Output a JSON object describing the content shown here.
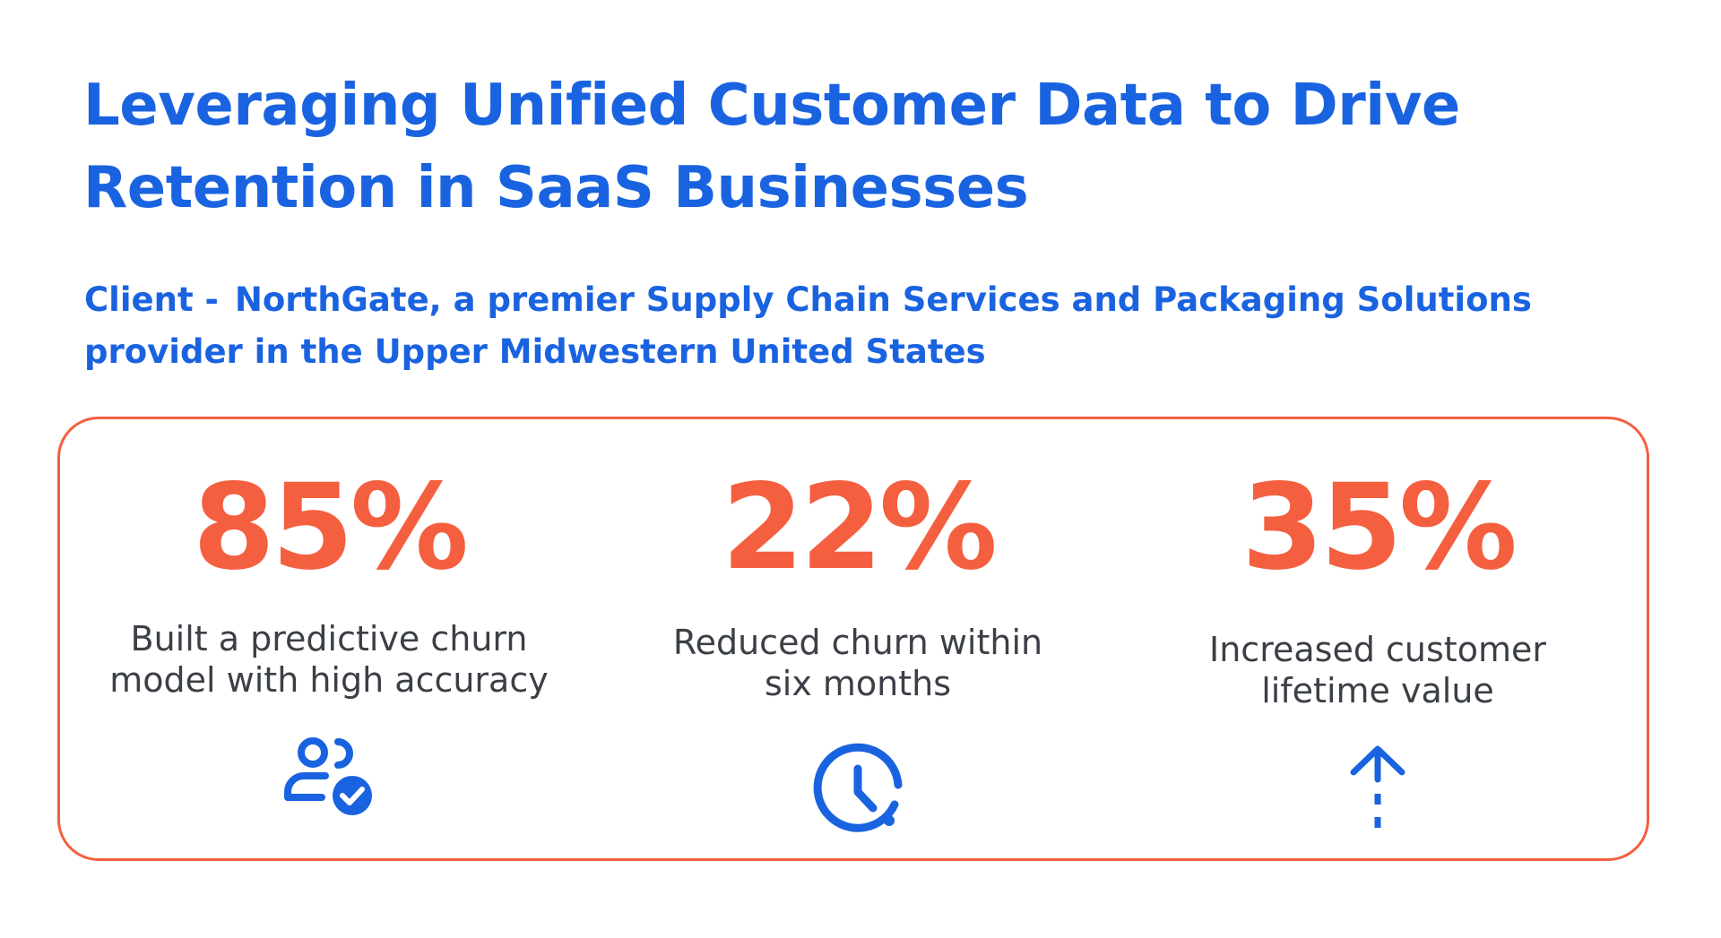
{
  "header": {
    "title": "Leveraging Unified Customer Data to Drive Retention in SaaS Businesses",
    "client_label": "Client -",
    "client_text": "NorthGate, a premier Supply Chain Services and Packaging Solutions provider in the Upper Midwestern United States"
  },
  "stats": [
    {
      "value": "85%",
      "description": "Built a predictive churn model with high accuracy",
      "icon": "user-check-icon"
    },
    {
      "value": "22%",
      "description": "Reduced churn within six months",
      "icon": "clock-icon"
    },
    {
      "value": "35%",
      "description": "Increased customer lifetime value",
      "icon": "arrow-up-icon"
    }
  ],
  "colors": {
    "heading_blue": "#1a63e0",
    "accent_orange": "#f45f3f",
    "body_text": "#3b3f46"
  }
}
